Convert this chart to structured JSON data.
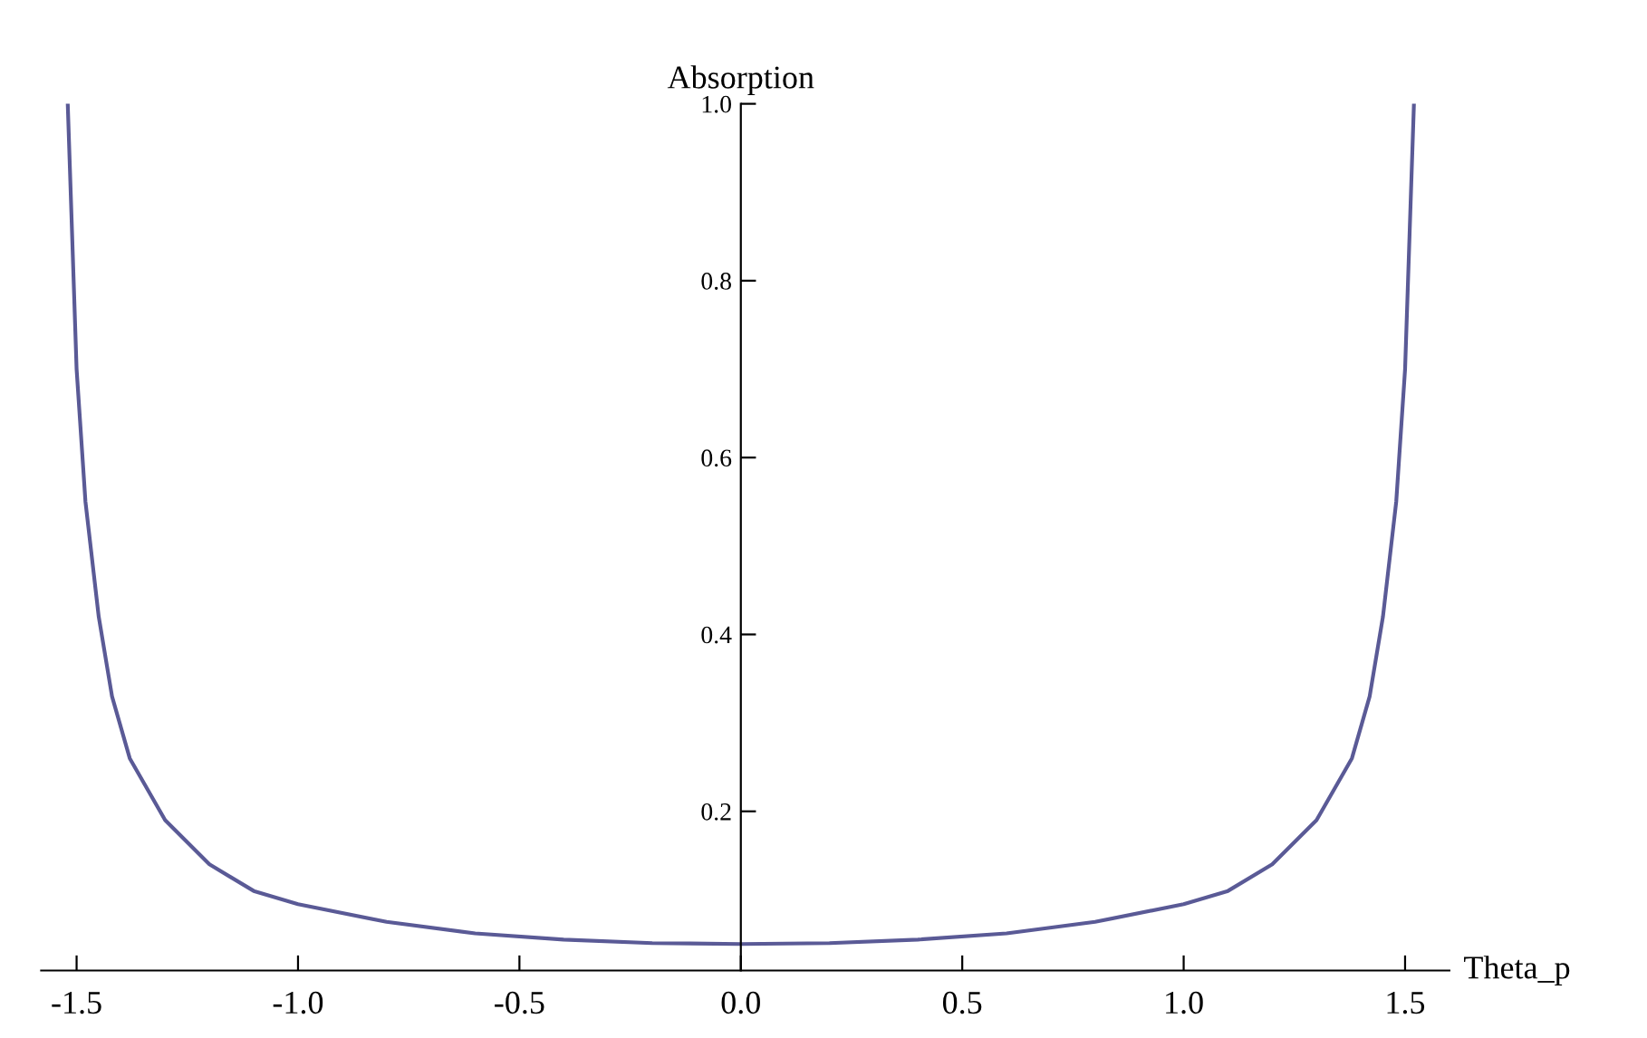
{
  "chart_data": {
    "type": "line",
    "xlabel": "Theta_p",
    "ylabel": "Absorption",
    "x": [
      -1.52,
      -1.51,
      -1.5,
      -1.48,
      -1.45,
      -1.42,
      -1.38,
      -1.3,
      -1.2,
      -1.1,
      -1.0,
      -0.8,
      -0.6,
      -0.4,
      -0.2,
      0,
      0.2,
      0.4,
      0.6,
      0.8,
      1.0,
      1.1,
      1.2,
      1.3,
      1.38,
      1.42,
      1.45,
      1.48,
      1.5,
      1.51,
      1.52
    ],
    "series": [
      {
        "color": "#5a5a96",
        "values": [
          1.0,
          0.85,
          0.7,
          0.55,
          0.42,
          0.33,
          0.26,
          0.19,
          0.14,
          0.11,
          0.095,
          0.075,
          0.062,
          0.055,
          0.051,
          0.05,
          0.051,
          0.055,
          0.062,
          0.075,
          0.095,
          0.11,
          0.14,
          0.19,
          0.26,
          0.33,
          0.42,
          0.55,
          0.7,
          0.85,
          1.0
        ]
      }
    ],
    "xlim": [
      -1.58,
      1.6
    ],
    "ylim": [
      0.02,
      1.0
    ],
    "xticks": [
      {
        "value": -1.5,
        "label": "-1.5"
      },
      {
        "value": -1.0,
        "label": "-1.0"
      },
      {
        "value": -0.5,
        "label": "-0.5"
      },
      {
        "value": 0,
        "label": "0.0"
      },
      {
        "value": 0.5,
        "label": "0.5"
      },
      {
        "value": 1.0,
        "label": "1.0"
      },
      {
        "value": 1.5,
        "label": "1.5"
      }
    ],
    "yticks": [
      0.2,
      0.4,
      0.6,
      0.8,
      {
        "value": 1.0,
        "label": "1.0"
      }
    ],
    "grid": false,
    "legend": false,
    "marker": "none",
    "line_style": "solid"
  }
}
